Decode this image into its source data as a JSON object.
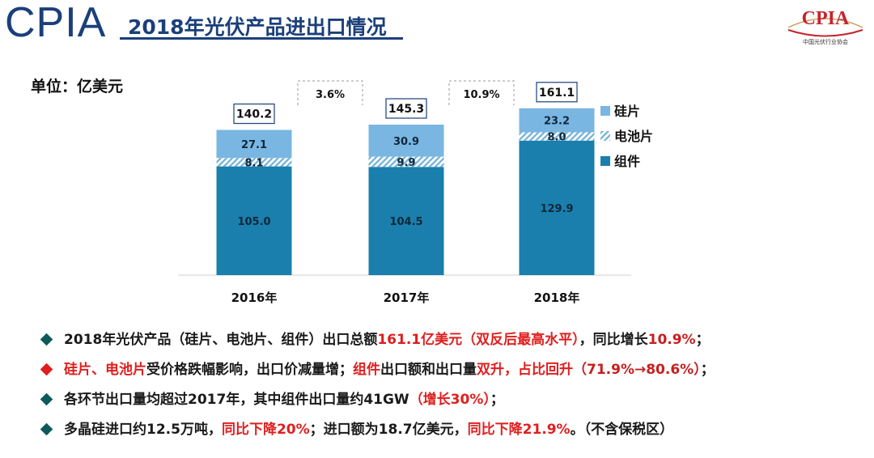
{
  "header": {
    "brand": "CPIA",
    "title": "2018年光伏产品进出口情况",
    "logo_text": "CPIA",
    "logo_subtitle": "中国光伏行业协会"
  },
  "unit_label": "单位：亿美元",
  "colors": {
    "module": "#1a7fad",
    "cell_hatch": "#6fb1d8",
    "wafer": "#7ab6e2",
    "title": "#1b3f7a",
    "highlight": "#e01e1e"
  },
  "chart_data": {
    "type": "bar",
    "stacked": true,
    "categories": [
      "2016年",
      "2017年",
      "2018年"
    ],
    "series": [
      {
        "name": "组件",
        "values": [
          105.0,
          104.5,
          129.9
        ],
        "labels": [
          "105.0",
          "104.5",
          "129.9"
        ]
      },
      {
        "name": "电池片",
        "values": [
          8.1,
          9.9,
          8.0
        ],
        "labels": [
          "8.1",
          "9.9",
          "8.0"
        ]
      },
      {
        "name": "硅片",
        "values": [
          27.1,
          30.9,
          23.2
        ],
        "labels": [
          "27.1",
          "30.9",
          "23.2"
        ]
      }
    ],
    "totals": [
      "140.2",
      "145.3",
      "161.1"
    ],
    "growth_labels": [
      "3.6%",
      "10.9%"
    ],
    "legend": [
      "硅片",
      "电池片",
      "组件"
    ],
    "legend_position": "right",
    "ylim": [
      0,
      175
    ],
    "grid": false
  },
  "bullets": [
    {
      "marker": "dark",
      "segments": [
        {
          "text": "2018年光伏产品（硅片、电池片、组件）出口总额",
          "style": ""
        },
        {
          "text": "161.1亿美元（双反后最高水平）",
          "style": "red"
        },
        {
          "text": "，同比增长",
          "style": ""
        },
        {
          "text": "10.9%",
          "style": "val"
        },
        {
          "text": "；",
          "style": ""
        }
      ]
    },
    {
      "marker": "red",
      "segments": [
        {
          "text": "硅片、电池片",
          "style": "red"
        },
        {
          "text": "受价格跌幅影响，出口价减量增；",
          "style": ""
        },
        {
          "text": "组件",
          "style": "red"
        },
        {
          "text": "出口额和出口量",
          "style": ""
        },
        {
          "text": "双升，占比回升",
          "style": "red"
        },
        {
          "text": "（71.9%→80.6%）",
          "style": "val"
        },
        {
          "text": "；",
          "style": ""
        }
      ]
    },
    {
      "marker": "dark",
      "segments": [
        {
          "text": "各环节出口量均超过2017年，其中组件出口量约41GW",
          "style": ""
        },
        {
          "text": "（增长30%）",
          "style": "red"
        },
        {
          "text": "；",
          "style": ""
        }
      ]
    },
    {
      "marker": "dark",
      "segments": [
        {
          "text": "多晶硅进口约12.5万吨，",
          "style": ""
        },
        {
          "text": "同比下降20%",
          "style": "red"
        },
        {
          "text": "；进口额为18.7亿美元，",
          "style": ""
        },
        {
          "text": "同比下降21.9%",
          "style": "red"
        },
        {
          "text": "。（不含保税区）",
          "style": ""
        }
      ]
    }
  ]
}
